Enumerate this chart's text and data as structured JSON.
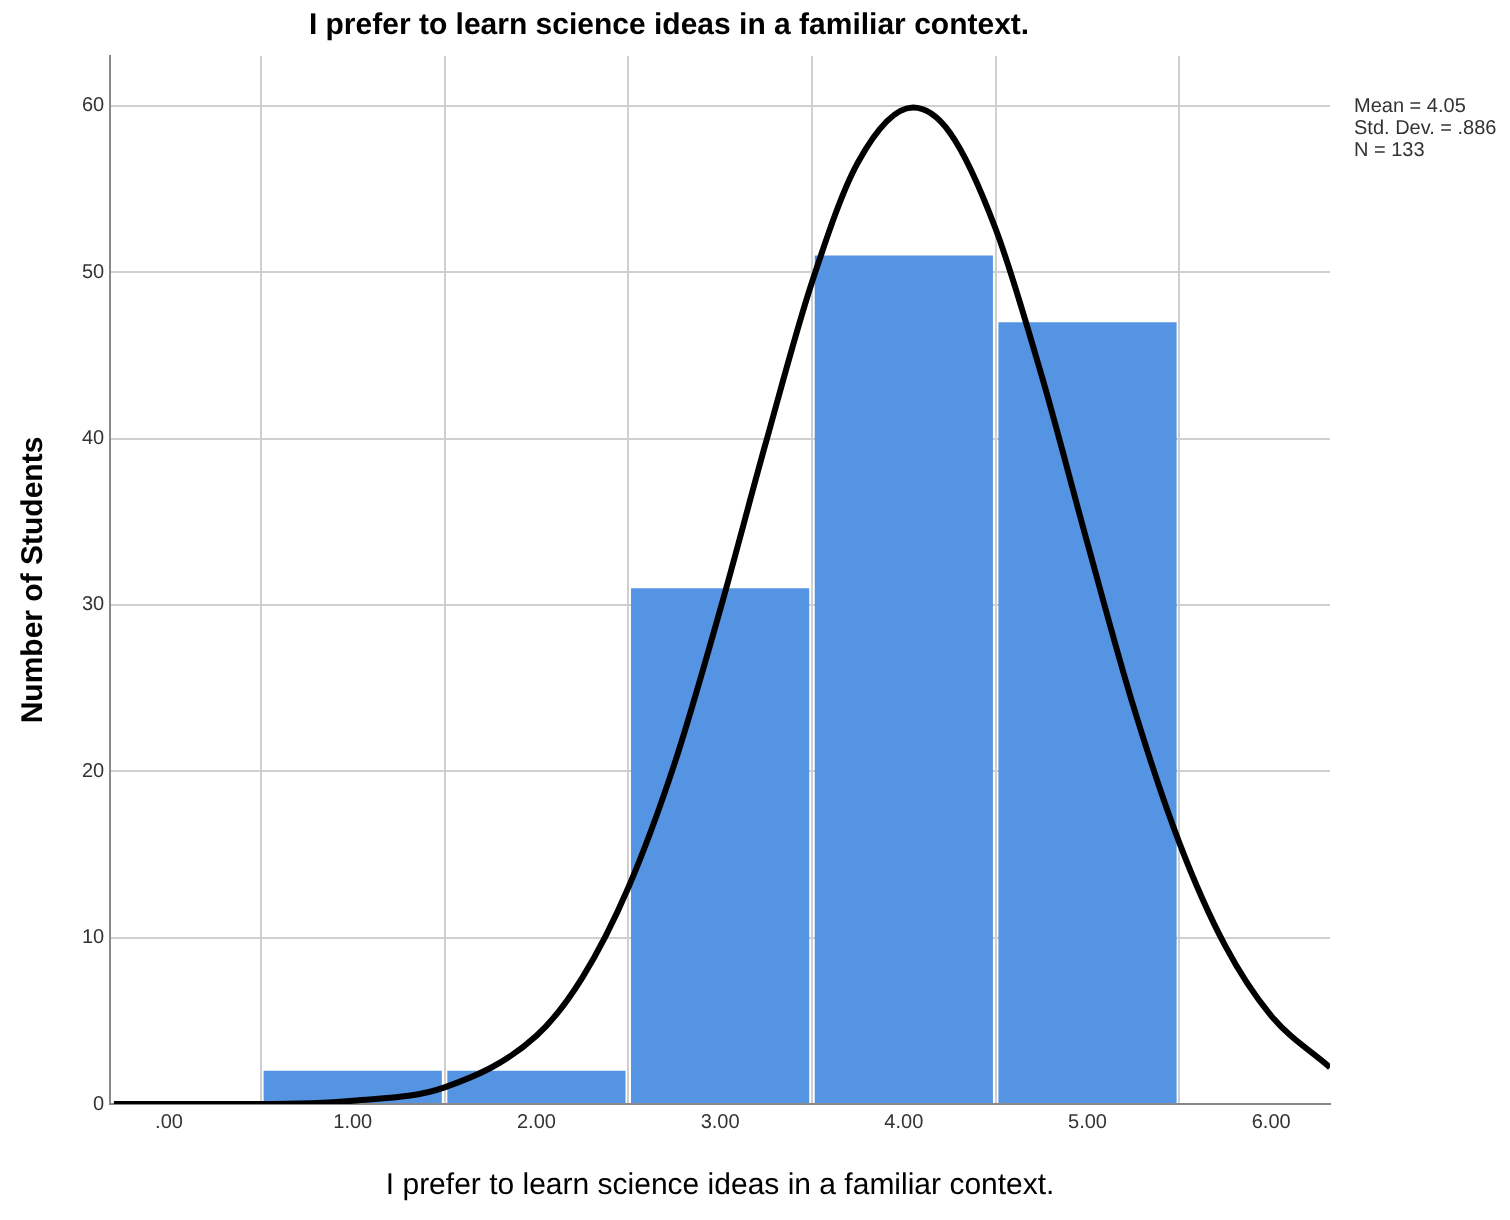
{
  "chart_data": {
    "type": "histogram",
    "title": "I prefer to learn science ideas in a familiar context.",
    "xlabel": "I prefer to learn science ideas in a familiar context.",
    "ylabel": "Number of Students",
    "bins": [
      0.5,
      1.5,
      2.5,
      3.5,
      4.5,
      5.5
    ],
    "values": [
      2,
      2,
      31,
      51,
      47
    ],
    "color": "#5594e2",
    "series": [
      {
        "type": "line",
        "color": "#000000",
        "x": [
          -0.3,
          0.5,
          1.0,
          1.5,
          2.0,
          2.25,
          2.5,
          2.75,
          3.0,
          3.25,
          3.5,
          3.75,
          4.05,
          4.25,
          4.5,
          4.75,
          5.0,
          5.25,
          5.5,
          5.75,
          6.0,
          6.32
        ],
        "values": [
          0,
          0,
          0.2,
          1,
          4.1,
          7.6,
          13.0,
          20.4,
          29.7,
          39.8,
          49.4,
          56.6,
          59.9,
          58.4,
          52.6,
          43.8,
          33.7,
          23.9,
          15.7,
          9.5,
          5.3,
          2.2
        ]
      }
    ],
    "xlim": [
      -0.32,
      6.32
    ],
    "xticks": [
      {
        "value": 0,
        "label": ".00"
      },
      {
        "value": 1,
        "label": "1.00"
      },
      {
        "value": 2,
        "label": "2.00"
      },
      {
        "value": 3,
        "label": "3.00"
      },
      {
        "value": 4,
        "label": "4.00"
      },
      {
        "value": 5,
        "label": "5.00"
      },
      {
        "value": 6,
        "label": "6.00"
      }
    ],
    "ylim": [
      0,
      63
    ],
    "yticks": [
      0,
      10,
      20,
      30,
      40,
      50,
      60
    ],
    "grid": true,
    "legend": false,
    "marker": "none",
    "line_style": "solid",
    "annotations": [
      "Mean = 4.05",
      "Std. Dev. = .886",
      "N = 133"
    ]
  }
}
